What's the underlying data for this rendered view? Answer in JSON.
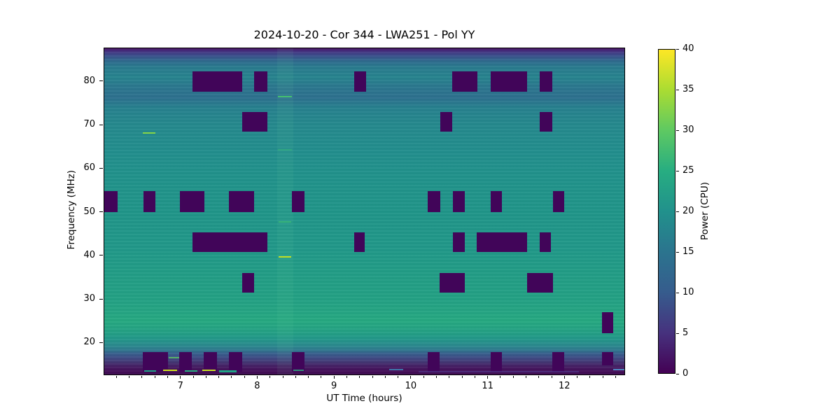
{
  "title": "2024-10-20 - Cor 344 - LWA251 - Pol YY",
  "chart_data": {
    "type": "heatmap",
    "title": "2024-10-20 - Cor 344 - LWA251 - Pol YY",
    "xlabel": "UT Time (hours)",
    "ylabel": "Frequency (MHz)",
    "x_range": [
      6.0,
      12.79
    ],
    "y_range": [
      12.5,
      87.7
    ],
    "x_ticks": [
      7,
      8,
      9,
      10,
      11,
      12
    ],
    "x_minor_step": 0.166667,
    "y_ticks": [
      20,
      30,
      40,
      50,
      60,
      70,
      80
    ],
    "grid": false,
    "colormap": "viridis",
    "colorbar": {
      "label": "Power (CPU)",
      "range": [
        0,
        40
      ],
      "ticks": [
        0,
        5,
        10,
        15,
        20,
        25,
        30,
        35,
        40
      ],
      "stops": [
        {
          "v": 0,
          "color": "#440154"
        },
        {
          "v": 5,
          "color": "#46327e"
        },
        {
          "v": 10,
          "color": "#365c8d"
        },
        {
          "v": 15,
          "color": "#2b748e"
        },
        {
          "v": 20,
          "color": "#21918c"
        },
        {
          "v": 25,
          "color": "#27ad81"
        },
        {
          "v": 30,
          "color": "#5ec962"
        },
        {
          "v": 35,
          "color": "#aadc32"
        },
        {
          "v": 40,
          "color": "#fde725"
        }
      ]
    },
    "background_profile": [
      {
        "f": 87.7,
        "color": "#430d5c"
      },
      {
        "f": 87.2,
        "color": "#462b7c"
      },
      {
        "f": 86.4,
        "color": "#3f458a"
      },
      {
        "f": 85.6,
        "color": "#37598c"
      },
      {
        "f": 84.7,
        "color": "#2f6c8e"
      },
      {
        "f": 83.5,
        "color": "#2a7a8e"
      },
      {
        "f": 81.0,
        "color": "#27848e"
      },
      {
        "f": 79.0,
        "color": "#2b788e"
      },
      {
        "f": 76.3,
        "color": "#2d708e"
      },
      {
        "f": 74.0,
        "color": "#27818e"
      },
      {
        "f": 70.0,
        "color": "#25898d"
      },
      {
        "f": 64.0,
        "color": "#228e8d"
      },
      {
        "f": 58.0,
        "color": "#21928b"
      },
      {
        "f": 50.0,
        "color": "#209589"
      },
      {
        "f": 42.0,
        "color": "#219889"
      },
      {
        "f": 36.0,
        "color": "#229d86"
      },
      {
        "f": 30.0,
        "color": "#23a184"
      },
      {
        "f": 27.0,
        "color": "#25a583"
      },
      {
        "f": 24.8,
        "color": "#26a981"
      },
      {
        "f": 22.5,
        "color": "#24a284"
      },
      {
        "f": 20.8,
        "color": "#229889"
      },
      {
        "f": 19.2,
        "color": "#2b8a8e"
      },
      {
        "f": 18.2,
        "color": "#2f7a8e"
      },
      {
        "f": 17.4,
        "color": "#37618d"
      },
      {
        "f": 16.4,
        "color": "#3e4d86"
      },
      {
        "f": 15.4,
        "color": "#443875"
      },
      {
        "f": 14.4,
        "color": "#461f64"
      },
      {
        "f": 13.4,
        "color": "#440f59"
      },
      {
        "f": 12.5,
        "color": "#410c54"
      }
    ],
    "flag_color": "#410559",
    "flagged_regions": [
      {
        "t0": 7.15,
        "t1": 7.8,
        "f0": 77.7,
        "f1": 82.4
      },
      {
        "t0": 7.96,
        "t1": 8.13,
        "f0": 77.7,
        "f1": 82.4
      },
      {
        "t0": 9.26,
        "t1": 9.42,
        "f0": 77.7,
        "f1": 82.4
      },
      {
        "t0": 10.54,
        "t1": 10.87,
        "f0": 77.7,
        "f1": 82.4
      },
      {
        "t0": 11.04,
        "t1": 11.52,
        "f0": 77.7,
        "f1": 82.4
      },
      {
        "t0": 11.68,
        "t1": 11.85,
        "f0": 77.7,
        "f1": 82.4
      },
      {
        "t0": 7.8,
        "t1": 8.13,
        "f0": 68.5,
        "f1": 73.0
      },
      {
        "t0": 10.39,
        "t1": 10.54,
        "f0": 68.5,
        "f1": 73.0
      },
      {
        "t0": 11.68,
        "t1": 11.85,
        "f0": 68.5,
        "f1": 73.0
      },
      {
        "t0": 6.0,
        "t1": 6.17,
        "f0": 49.9,
        "f1": 54.7
      },
      {
        "t0": 6.51,
        "t1": 6.67,
        "f0": 49.9,
        "f1": 54.7
      },
      {
        "t0": 6.99,
        "t1": 7.31,
        "f0": 49.9,
        "f1": 54.7
      },
      {
        "t0": 7.63,
        "t1": 7.96,
        "f0": 49.9,
        "f1": 54.7
      },
      {
        "t0": 8.45,
        "t1": 8.61,
        "f0": 49.9,
        "f1": 54.7
      },
      {
        "t0": 10.22,
        "t1": 10.39,
        "f0": 49.9,
        "f1": 54.7
      },
      {
        "t0": 10.55,
        "t1": 10.71,
        "f0": 49.9,
        "f1": 54.7
      },
      {
        "t0": 11.04,
        "t1": 11.19,
        "f0": 49.9,
        "f1": 54.7
      },
      {
        "t0": 11.86,
        "t1": 12.0,
        "f0": 49.9,
        "f1": 54.7
      },
      {
        "t0": 7.15,
        "t1": 8.13,
        "f0": 40.8,
        "f1": 45.3
      },
      {
        "t0": 9.26,
        "t1": 9.4,
        "f0": 40.8,
        "f1": 45.3
      },
      {
        "t0": 10.55,
        "t1": 10.71,
        "f0": 40.8,
        "f1": 45.3
      },
      {
        "t0": 10.86,
        "t1": 11.52,
        "f0": 40.8,
        "f1": 45.3
      },
      {
        "t0": 11.68,
        "t1": 11.83,
        "f0": 40.8,
        "f1": 45.3
      },
      {
        "t0": 7.8,
        "t1": 7.96,
        "f0": 31.3,
        "f1": 35.9
      },
      {
        "t0": 10.38,
        "t1": 10.71,
        "f0": 31.3,
        "f1": 35.9
      },
      {
        "t0": 11.52,
        "t1": 11.86,
        "f0": 31.3,
        "f1": 35.9
      },
      {
        "t0": 12.5,
        "t1": 12.64,
        "f0": 22.1,
        "f1": 26.8
      },
      {
        "t0": 6.5,
        "t1": 6.83,
        "f0": 13.1,
        "f1": 17.6
      },
      {
        "t0": 6.98,
        "t1": 7.14,
        "f0": 13.1,
        "f1": 17.6
      },
      {
        "t0": 7.3,
        "t1": 7.47,
        "f0": 13.1,
        "f1": 17.6
      },
      {
        "t0": 7.63,
        "t1": 7.8,
        "f0": 13.1,
        "f1": 17.6
      },
      {
        "t0": 8.45,
        "t1": 8.61,
        "f0": 13.1,
        "f1": 17.6
      },
      {
        "t0": 10.22,
        "t1": 10.38,
        "f0": 13.1,
        "f1": 17.6
      },
      {
        "t0": 11.04,
        "t1": 11.19,
        "f0": 13.1,
        "f1": 17.6
      },
      {
        "t0": 11.85,
        "t1": 12.0,
        "f0": 13.1,
        "f1": 17.6
      },
      {
        "t0": 12.5,
        "t1": 12.64,
        "f0": 14.6,
        "f1": 17.6
      }
    ],
    "highlight_columns": [
      {
        "t0": 8.26,
        "t1": 8.47,
        "color": "#7ee0b0",
        "alpha": 0.07
      }
    ],
    "streaks": [
      {
        "t0": 6.5,
        "t1": 6.67,
        "f": 68.1,
        "color": "#86d549",
        "h": 2,
        "alpha": 1
      },
      {
        "t0": 8.27,
        "t1": 8.45,
        "f": 76.6,
        "color": "#44bf70",
        "h": 2,
        "alpha": 1
      },
      {
        "t0": 8.27,
        "t1": 8.45,
        "f": 64.3,
        "color": "#35b779",
        "h": 2,
        "alpha": 0.55
      },
      {
        "t0": 8.28,
        "t1": 8.44,
        "f": 47.6,
        "color": "#3dbc74",
        "h": 2,
        "alpha": 0.7
      },
      {
        "t0": 8.28,
        "t1": 8.44,
        "f": 39.6,
        "color": "#c2df23",
        "h": 2,
        "alpha": 1
      },
      {
        "t0": 6.84,
        "t1": 6.98,
        "f": 16.3,
        "color": "#5ec962",
        "h": 2,
        "alpha": 0.8
      },
      {
        "t0": 6.52,
        "t1": 6.68,
        "f": 13.3,
        "color": "#1fa187",
        "h": 2,
        "alpha": 1
      },
      {
        "t0": 6.77,
        "t1": 6.95,
        "f": 13.45,
        "color": "#d0e11c",
        "h": 2,
        "alpha": 1
      },
      {
        "t0": 7.05,
        "t1": 7.22,
        "f": 13.3,
        "color": "#28ae80",
        "h": 2,
        "alpha": 1
      },
      {
        "t0": 7.28,
        "t1": 7.45,
        "f": 13.45,
        "color": "#c8e020",
        "h": 2,
        "alpha": 1
      },
      {
        "t0": 7.5,
        "t1": 7.73,
        "f": 13.2,
        "color": "#20a486",
        "h": 3,
        "alpha": 1
      },
      {
        "t0": 8.47,
        "t1": 8.6,
        "f": 13.5,
        "color": "#2db27d",
        "h": 2,
        "alpha": 0.8
      },
      {
        "t0": 9.72,
        "t1": 9.9,
        "f": 13.7,
        "color": "#3f74a8",
        "h": 2,
        "alpha": 1
      },
      {
        "t0": 10.1,
        "t1": 12.2,
        "f": 13.1,
        "color": "#53479c",
        "h": 2,
        "alpha": 0.5
      },
      {
        "t0": 12.64,
        "t1": 12.79,
        "f": 13.6,
        "color": "#4f86c0",
        "h": 2,
        "alpha": 1
      }
    ]
  }
}
